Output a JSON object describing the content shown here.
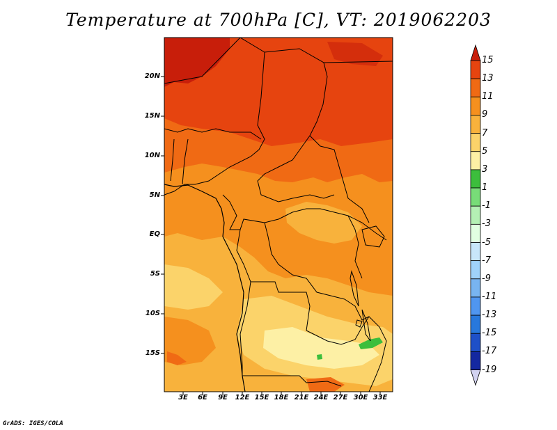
{
  "title": "Temperature at 700hPa [C], VT: 2019062203",
  "footer": "GrADS: IGES/COLA",
  "map": {
    "lat_labels": [
      "20N",
      "15N",
      "10N",
      "5N",
      "EQ",
      "5S",
      "10S",
      "15S"
    ],
    "lon_labels": [
      "3E",
      "6E",
      "9E",
      "12E",
      "15E",
      "18E",
      "21E",
      "24E",
      "27E",
      "30E",
      "33E"
    ]
  },
  "colorbar": {
    "labels": [
      "15",
      "13",
      "11",
      "9",
      "7",
      "5",
      "3",
      "1",
      "-1",
      "-3",
      "-5",
      "-7",
      "-9",
      "-11",
      "-13",
      "-15",
      "-17",
      "-19"
    ],
    "colors": [
      "#e6440f",
      "#f06a14",
      "#f5901e",
      "#f8b23c",
      "#fbd36a",
      "#fdf0a5",
      "#3cbe3c",
      "#78dc78",
      "#b4f0b4",
      "#e1ffe1",
      "#c8e6fa",
      "#a0d2fa",
      "#78b4f0",
      "#5096f0",
      "#2878dc",
      "#1e50c8",
      "#1428a0",
      "#0a0a6e"
    ],
    "top_color": "#c81e0a",
    "bottom_color": "#d2d2f0"
  }
}
